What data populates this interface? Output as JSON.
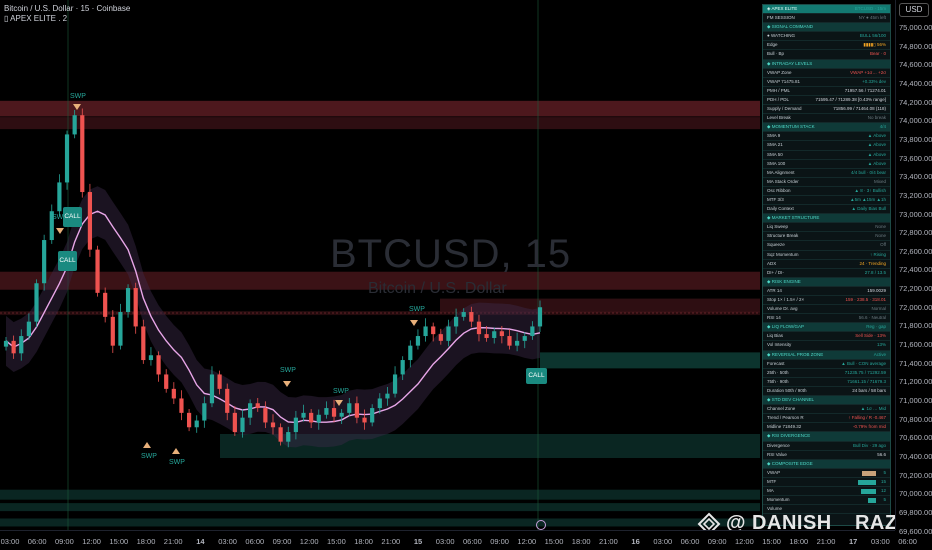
{
  "header": {
    "symbol_line": "Bitcoin / U.S. Dollar · 15 · Coinbase",
    "indicator_line": "▯ APEX ELITE . 2"
  },
  "watermark": {
    "ticker": "BTCUSD, 15",
    "name": "Bitcoin / U.S. Dollar"
  },
  "price_axis": {
    "currency": "USD",
    "ticks": [
      "75,000.00",
      "74,800.00",
      "74,600.00",
      "74,400.00",
      "74,200.00",
      "74,000.00",
      "73,800.00",
      "73,600.00",
      "73,400.00",
      "73,200.00",
      "73,000.00",
      "72,800.00",
      "72,600.00",
      "72,400.00",
      "72,200.00",
      "72,000.00",
      "71,800.00",
      "71,600.00",
      "71,400.00",
      "71,200.00",
      "71,000.00",
      "70,800.00",
      "70,600.00",
      "70,400.00",
      "70,200.00",
      "70,000.00",
      "69,800.00",
      "69,600.00"
    ]
  },
  "time_axis": {
    "ticks": [
      "03:00",
      "06:00",
      "09:00",
      "12:00",
      "15:00",
      "18:00",
      "21:00",
      "14",
      "03:00",
      "06:00",
      "09:00",
      "12:00",
      "15:00",
      "18:00",
      "21:00",
      "15",
      "03:00",
      "06:00",
      "09:00",
      "12:00",
      "15:00",
      "18:00",
      "21:00",
      "16",
      "03:00",
      "06:00",
      "09:00",
      "12:00",
      "15:00",
      "18:00",
      "21:00",
      "17",
      "03:00",
      "06:00"
    ]
  },
  "signals": [
    {
      "text": "SWP"
    },
    {
      "text": "SWP"
    },
    {
      "text": "SWP"
    },
    {
      "text": "SWP"
    },
    {
      "text": "SWP"
    },
    {
      "text": "SWP"
    },
    {
      "text": "SWP"
    }
  ],
  "calls": [
    {
      "text": "CALL"
    },
    {
      "text": "CALL"
    },
    {
      "text": "CALL"
    }
  ],
  "credit": "@ DANISH__RAZA",
  "panel": {
    "rows": [
      {
        "type": "title",
        "l": "◈ APEX ELITE",
        "r": "BTCUSD · 15m"
      },
      {
        "type": "row",
        "l": "FM SESSION",
        "r": "NY ● 45m left",
        "rc": "grey"
      },
      {
        "type": "sec",
        "l": "◆ SIGNAL COMMAND",
        "r": ""
      },
      {
        "type": "row",
        "l": "● WATCHING",
        "r": "BULL 56/100"
      },
      {
        "type": "row",
        "l": "Edge",
        "r": "▮▮▮▮▯ 56%",
        "rc": "orange"
      },
      {
        "type": "row",
        "l": "Bull · Bp",
        "r": "Bear · 0",
        "rc": "red"
      },
      {
        "type": "sec",
        "l": "◆ INTRADAY LEVELS",
        "r": ""
      },
      {
        "type": "row",
        "l": "VWAP Zone",
        "r": "VWAP +1σ… +2σ",
        "rc": "red"
      },
      {
        "type": "row",
        "l": "VWAP 71475.81",
        "r": "+0.33% dev"
      },
      {
        "type": "row",
        "l": "PMH / PML",
        "r": "71957.56 / 71274.01",
        "rc": "white"
      },
      {
        "type": "row",
        "l": "PDH / PDL",
        "r": "71595.47 / 71289.38 [0.43% range]",
        "rc": "white"
      },
      {
        "type": "row",
        "l": "Supply / Demand",
        "r": "71856.99 / 71464.08 (118)",
        "rc": "white"
      },
      {
        "type": "row",
        "l": "Level Break",
        "r": "No break",
        "rc": "grey"
      },
      {
        "type": "sec",
        "l": "◆ MOMENTUM STACK",
        "r": "4/4"
      },
      {
        "type": "row",
        "l": "SMA 9",
        "r": "▲ Above"
      },
      {
        "type": "row",
        "l": "SMA 21",
        "r": "▲ Above"
      },
      {
        "type": "row",
        "l": "SMA 50",
        "r": "▲ Above"
      },
      {
        "type": "row",
        "l": "SMA 100",
        "r": "▲ Above"
      },
      {
        "type": "row",
        "l": "MA Alignment",
        "r": "4/4 bull · 0/4 bear"
      },
      {
        "type": "row",
        "l": "MA Stack Order",
        "r": "Mixed",
        "rc": "grey"
      },
      {
        "type": "row",
        "l": "Osc Ribbon",
        "r": "▲ 8 · 3↑ Bullish"
      },
      {
        "type": "row",
        "l": "MTF 3/3",
        "r": "▲5m ▲15m ▲1h"
      },
      {
        "type": "row",
        "l": "Daily Context",
        "r": "▲ Daily Bias Bull"
      },
      {
        "type": "sec",
        "l": "◆ MARKET STRUCTURE",
        "r": ""
      },
      {
        "type": "row",
        "l": "Liq Sweep",
        "r": "None",
        "rc": "grey"
      },
      {
        "type": "row",
        "l": "Structure Break",
        "r": "None",
        "rc": "grey"
      },
      {
        "type": "row",
        "l": "Squeeze",
        "r": "Off",
        "rc": "grey"
      },
      {
        "type": "row",
        "l": "Sqz Momentum",
        "r": "↑ Rising"
      },
      {
        "type": "row",
        "l": "ADX",
        "r": "24 · Trending",
        "rc": "orange"
      },
      {
        "type": "row",
        "l": "DI+ / DI-",
        "r": "27.8 / 13.5"
      },
      {
        "type": "sec",
        "l": "◆ RISK ENGINE",
        "r": ""
      },
      {
        "type": "row",
        "l": "ATR 14",
        "r": "159.0029",
        "rc": "white"
      },
      {
        "type": "row",
        "l": "Stop 1× / 1.5× / 2×",
        "r": "159 · 238.5 · 318.01",
        "rc": "red"
      },
      {
        "type": "row",
        "l": "Volume Dr. avg",
        "r": "Normal",
        "rc": "grey"
      },
      {
        "type": "row",
        "l": "RSI 14",
        "r": "56.6 · Neutral",
        "rc": "grey"
      },
      {
        "type": "sec",
        "l": "◆ LIQ FLOW/GAP",
        "r": "Reg · gap"
      },
      {
        "type": "row",
        "l": "Liq Bias",
        "r": "Sell Side · 13%",
        "rc": "red"
      },
      {
        "type": "row",
        "l": "Vol Intensity",
        "r": "13%"
      },
      {
        "type": "sec",
        "l": "◆ REVERSAL PROB ZONE",
        "r": "Active"
      },
      {
        "type": "row",
        "l": "Forecast",
        "r": "▲ Bull · CON average"
      },
      {
        "type": "row",
        "l": "25th · 50th",
        "r": "71235.75 / 71292.59"
      },
      {
        "type": "row",
        "l": "75th · 90th",
        "r": "71661.15 / 71679.3"
      },
      {
        "type": "row",
        "l": "Duration 50th / 90th",
        "r": "24 bars / 58 bars",
        "rc": "white"
      },
      {
        "type": "sec",
        "l": "◆ STD DEV CHANNEL",
        "r": ""
      },
      {
        "type": "row",
        "l": "Channel Zone",
        "r": "▲ 1σ … Mid"
      },
      {
        "type": "row",
        "l": "Trend / Pearson R",
        "r": "↑ Falling / R -0.467",
        "rc": "red"
      },
      {
        "type": "row",
        "l": "Midline 71849.32",
        "r": "-0.79% from mid",
        "rc": "red"
      },
      {
        "type": "sec",
        "l": "◆ RSI DIVERGENCE",
        "r": ""
      },
      {
        "type": "row",
        "l": "Divergence",
        "r": "Bull Div · 29 ago"
      },
      {
        "type": "row",
        "l": "RSI Value",
        "r": "56.6",
        "rc": "white"
      },
      {
        "type": "sec",
        "l": "◆ COMPOSITE EDGE",
        "r": ""
      },
      {
        "type": "row",
        "l": "VWAP",
        "r": "5",
        "bar": 14,
        "barc": "#c8a27a"
      },
      {
        "type": "row",
        "l": "MTF",
        "r": "15",
        "bar": 18
      },
      {
        "type": "row",
        "l": "MA",
        "r": "12",
        "bar": 15
      },
      {
        "type": "row",
        "l": "Momentum",
        "r": "5",
        "bar": 8
      },
      {
        "type": "row",
        "l": "Volume",
        "r": "",
        "bar": 0
      }
    ]
  },
  "colors": {
    "bull": "#26a69a",
    "bear": "#ef5350",
    "accent_line": "#e8a6e8",
    "supply_zone": "#5a1c22",
    "demand_zone": "#0b2a26"
  },
  "chart_data": {
    "type": "candlestick",
    "ylim": [
      69580,
      75100
    ],
    "grid": false,
    "series": [
      {
        "name": "BTCUSD 15m",
        "close": [
          71550,
          71420,
          71600,
          71750,
          72150,
          72600,
          72900,
          73200,
          73700,
          73900,
          73100,
          72500,
          72050,
          71800,
          71500,
          71850,
          72100,
          71700,
          71350,
          71400,
          71200,
          71050,
          70950,
          70800,
          70650,
          70720,
          70900,
          71200,
          71050,
          70800,
          70600,
          70750,
          70900,
          70850,
          70700,
          70650,
          70500,
          70600,
          70750,
          70800,
          70700,
          70780,
          70850,
          70760,
          70800,
          70900,
          70750,
          70700,
          70850,
          70950,
          71000,
          71200,
          71350,
          71500,
          71600,
          71700,
          71620,
          71550,
          71700,
          71800,
          71850,
          71750,
          71620,
          71580,
          71650,
          71600,
          71500,
          71550,
          71600,
          71700,
          71900
        ]
      }
    ]
  }
}
